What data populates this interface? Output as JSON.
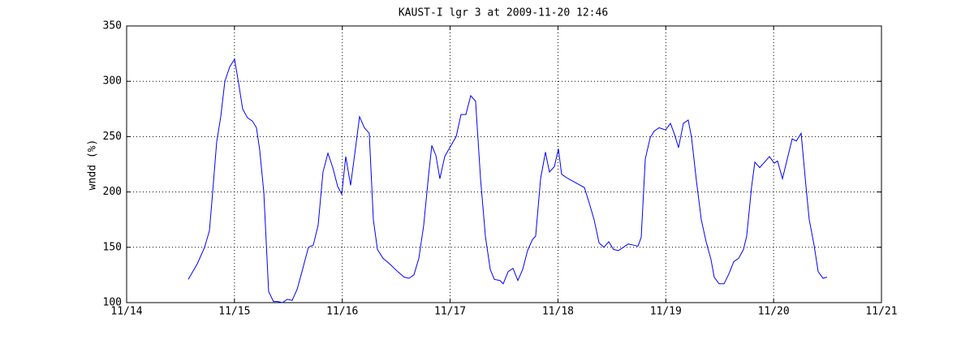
{
  "chart_data": {
    "type": "line",
    "title": "KAUST-I lgr 3 at 2009-11-20 12:46",
    "y_label": "wndd (%)",
    "x": [
      14.572,
      14.655,
      14.723,
      14.768,
      14.798,
      14.835,
      14.873,
      14.911,
      14.956,
      15.001,
      15.039,
      15.076,
      15.121,
      15.167,
      15.204,
      15.234,
      15.272,
      15.317,
      15.362,
      15.4,
      15.445,
      15.49,
      15.535,
      15.581,
      15.626,
      15.686,
      15.731,
      15.776,
      15.821,
      15.867,
      15.912,
      15.957,
      15.995,
      16.032,
      16.077,
      16.123,
      16.16,
      16.205,
      16.25,
      16.288,
      16.326,
      16.378,
      16.439,
      16.514,
      16.574,
      16.619,
      16.664,
      16.71,
      16.755,
      16.8,
      16.83,
      16.868,
      16.905,
      16.95,
      16.996,
      17.056,
      17.101,
      17.146,
      17.191,
      17.236,
      17.282,
      17.327,
      17.372,
      17.41,
      17.462,
      17.492,
      17.538,
      17.583,
      17.628,
      17.673,
      17.718,
      17.763,
      17.793,
      17.839,
      17.884,
      17.921,
      17.967,
      18.004,
      18.034,
      18.095,
      18.17,
      18.245,
      18.29,
      18.335,
      18.381,
      18.426,
      18.471,
      18.516,
      18.561,
      18.606,
      18.652,
      18.697,
      18.742,
      18.772,
      18.81,
      18.855,
      18.892,
      18.938,
      18.998,
      19.043,
      19.081,
      19.118,
      19.163,
      19.208,
      19.239,
      19.284,
      19.329,
      19.374,
      19.419,
      19.449,
      19.494,
      19.54,
      19.585,
      19.63,
      19.675,
      19.72,
      19.75,
      19.796,
      19.826,
      19.871,
      19.916,
      19.961,
      20.006,
      20.036,
      20.082,
      20.127,
      20.172,
      20.21,
      20.255,
      20.3,
      20.33,
      20.375,
      20.413,
      20.458,
      20.495
    ],
    "series": [
      {
        "color": "#0000ff",
        "values": [
          121,
          135,
          150,
          165,
          200,
          245,
          268,
          300,
          313,
          320,
          298,
          275,
          267,
          264,
          258,
          238,
          200,
          110,
          101,
          101,
          100,
          103,
          102,
          112,
          128,
          150,
          152,
          170,
          218,
          235,
          222,
          205,
          198,
          232,
          206,
          240,
          268,
          258,
          253,
          175,
          148,
          140,
          135,
          128,
          123,
          122,
          125,
          140,
          170,
          215,
          242,
          233,
          212,
          232,
          240,
          250,
          270,
          270,
          287,
          282,
          212,
          160,
          130,
          121,
          120,
          117,
          128,
          131,
          120,
          130,
          147,
          157,
          160,
          212,
          236,
          218,
          223,
          239,
          216,
          212,
          208,
          204,
          190,
          175,
          154,
          150,
          155,
          148,
          147,
          150,
          153,
          152,
          151,
          159,
          230,
          249,
          255,
          258,
          256,
          262,
          252,
          240,
          262,
          265,
          249,
          210,
          175,
          155,
          139,
          123,
          117,
          117,
          126,
          137,
          140,
          148,
          160,
          205,
          227,
          222,
          227,
          232,
          226,
          228,
          212,
          230,
          248,
          246,
          253,
          205,
          175,
          152,
          128,
          122,
          123
        ]
      }
    ],
    "xlim": [
      14,
      21
    ],
    "xticks": [
      {
        "value": 14,
        "label": "11/14"
      },
      {
        "value": 15,
        "label": "11/15"
      },
      {
        "value": 16,
        "label": "11/16"
      },
      {
        "value": 17,
        "label": "11/17"
      },
      {
        "value": 18,
        "label": "11/18"
      },
      {
        "value": 19,
        "label": "11/19"
      },
      {
        "value": 20,
        "label": "11/20"
      },
      {
        "value": 21,
        "label": "11/21"
      }
    ],
    "ylim": [
      100,
      350
    ],
    "yticks": [
      100,
      150,
      200,
      250,
      300,
      350
    ],
    "grid": true
  }
}
